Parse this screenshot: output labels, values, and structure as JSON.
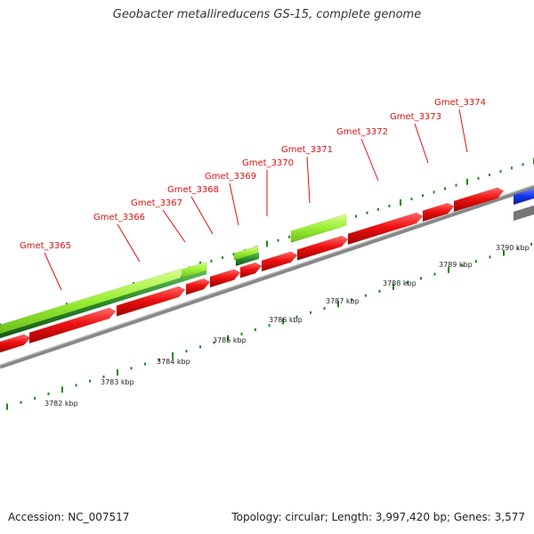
{
  "title": "Geobacter metallireducens GS-15, complete genome",
  "footer": {
    "accession": "Accession: NC_007517",
    "summary": "Topology: circular; Length: 3,997,420 bp; Genes: 3,577"
  },
  "colors": {
    "label": "#dd1111",
    "red_gene": "#ee1111",
    "light_green": "#99ee33",
    "dark_green": "#2a8a2a",
    "blue": "#1133ee",
    "backbone": "#888888",
    "tick": "#1a8a1a"
  },
  "gene_labels": [
    {
      "name": "Gmet_3365"
    },
    {
      "name": "Gmet_3366"
    },
    {
      "name": "Gmet_3367"
    },
    {
      "name": "Gmet_3368"
    },
    {
      "name": "Gmet_3369"
    },
    {
      "name": "Gmet_3370"
    },
    {
      "name": "Gmet_3371"
    },
    {
      "name": "Gmet_3372"
    },
    {
      "name": "Gmet_3373"
    },
    {
      "name": "Gmet_3374"
    }
  ],
  "scale_labels": [
    "3782 kbp",
    "3783 kbp",
    "3784 kbp",
    "3785 kbp",
    "3786 kbp",
    "3787 kbp",
    "3788 kbp",
    "3789 kbp",
    "3790 kbp"
  ]
}
